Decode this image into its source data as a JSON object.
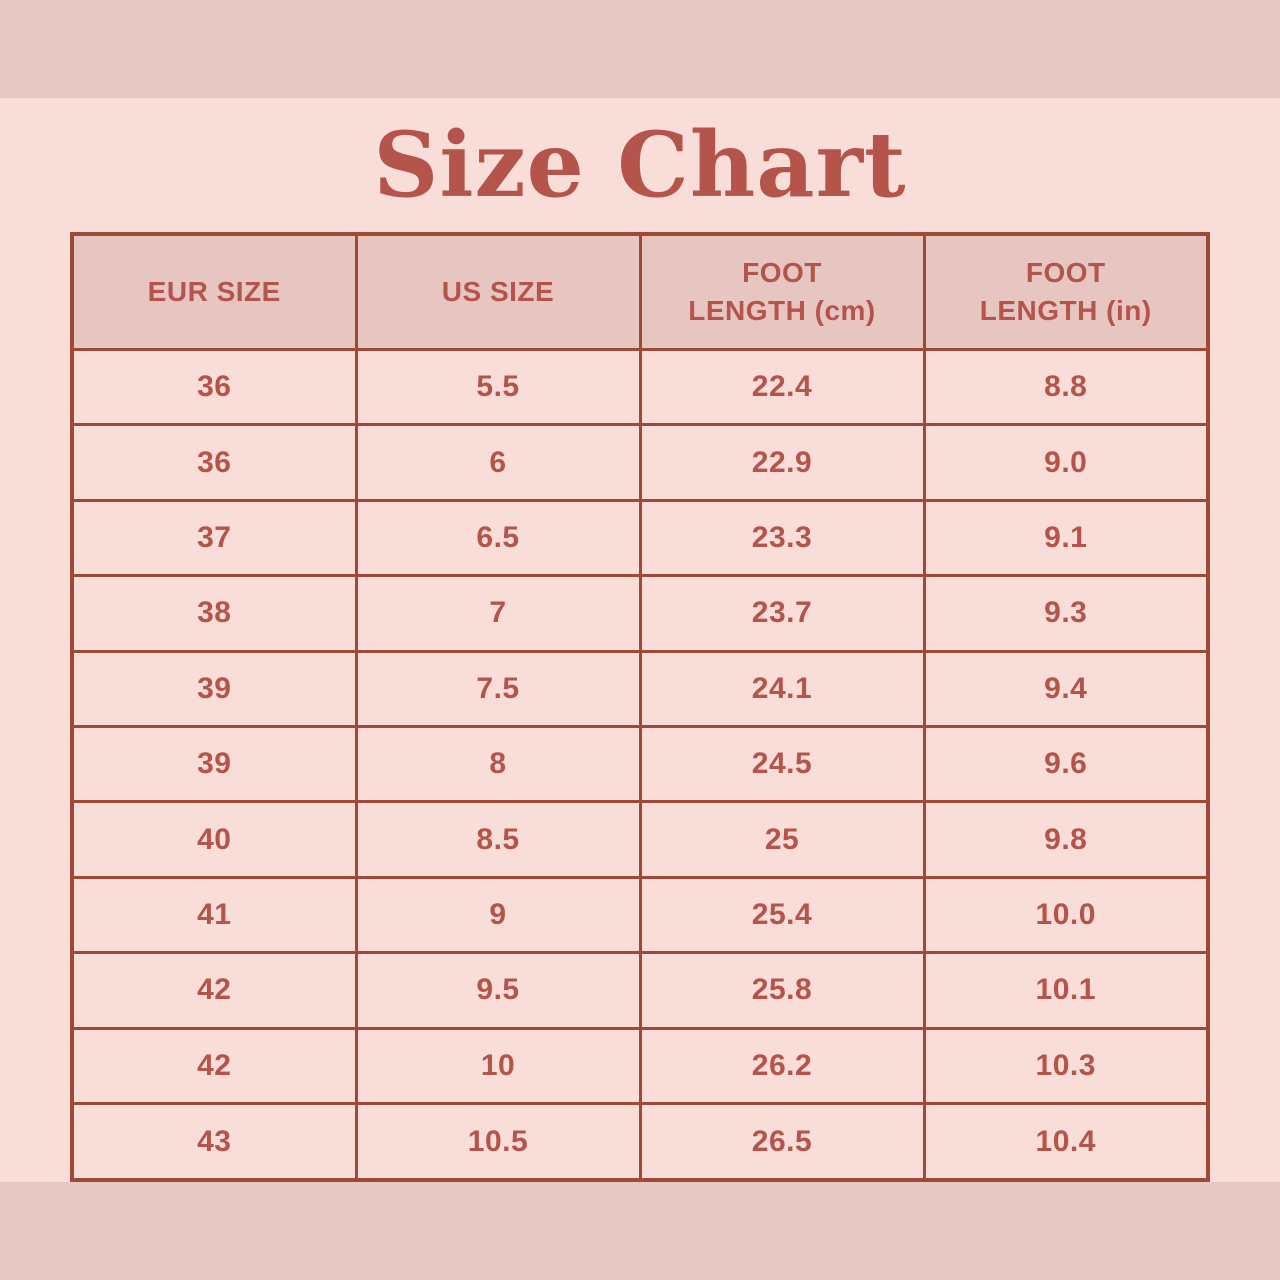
{
  "title": "Size Chart",
  "colors": {
    "background": "#f8ddd8",
    "band": "#e7c8c4",
    "header_fill": "#e7c6c2",
    "border": "#9e4a37",
    "text": "#b5544a"
  },
  "table": {
    "headers": [
      "EUR SIZE",
      "US SIZE",
      "FOOT LENGTH (cm)",
      "FOOT LENGTH (in)"
    ],
    "rows": [
      [
        "36",
        "5.5",
        "22.4",
        "8.8"
      ],
      [
        "36",
        "6",
        "22.9",
        "9.0"
      ],
      [
        "37",
        "6.5",
        "23.3",
        "9.1"
      ],
      [
        "38",
        "7",
        "23.7",
        "9.3"
      ],
      [
        "39",
        "7.5",
        "24.1",
        "9.4"
      ],
      [
        "39",
        "8",
        "24.5",
        "9.6"
      ],
      [
        "40",
        "8.5",
        "25",
        "9.8"
      ],
      [
        "41",
        "9",
        "25.4",
        "10.0"
      ],
      [
        "42",
        "9.5",
        "25.8",
        "10.1"
      ],
      [
        "42",
        "10",
        "26.2",
        "10.3"
      ],
      [
        "43",
        "10.5",
        "26.5",
        "10.4"
      ]
    ]
  },
  "chart_data": {
    "type": "table",
    "title": "Size Chart",
    "columns": [
      "EUR SIZE",
      "US SIZE",
      "FOOT LENGTH (cm)",
      "FOOT LENGTH (in)"
    ],
    "rows": [
      [
        "36",
        "5.5",
        "22.4",
        "8.8"
      ],
      [
        "36",
        "6",
        "22.9",
        "9.0"
      ],
      [
        "37",
        "6.5",
        "23.3",
        "9.1"
      ],
      [
        "38",
        "7",
        "23.7",
        "9.3"
      ],
      [
        "39",
        "7.5",
        "24.1",
        "9.4"
      ],
      [
        "39",
        "8",
        "24.5",
        "9.6"
      ],
      [
        "40",
        "8.5",
        "25",
        "9.8"
      ],
      [
        "41",
        "9",
        "25.4",
        "10.0"
      ],
      [
        "42",
        "9.5",
        "25.8",
        "10.1"
      ],
      [
        "42",
        "10",
        "26.2",
        "10.3"
      ],
      [
        "43",
        "10.5",
        "26.5",
        "10.4"
      ]
    ]
  }
}
